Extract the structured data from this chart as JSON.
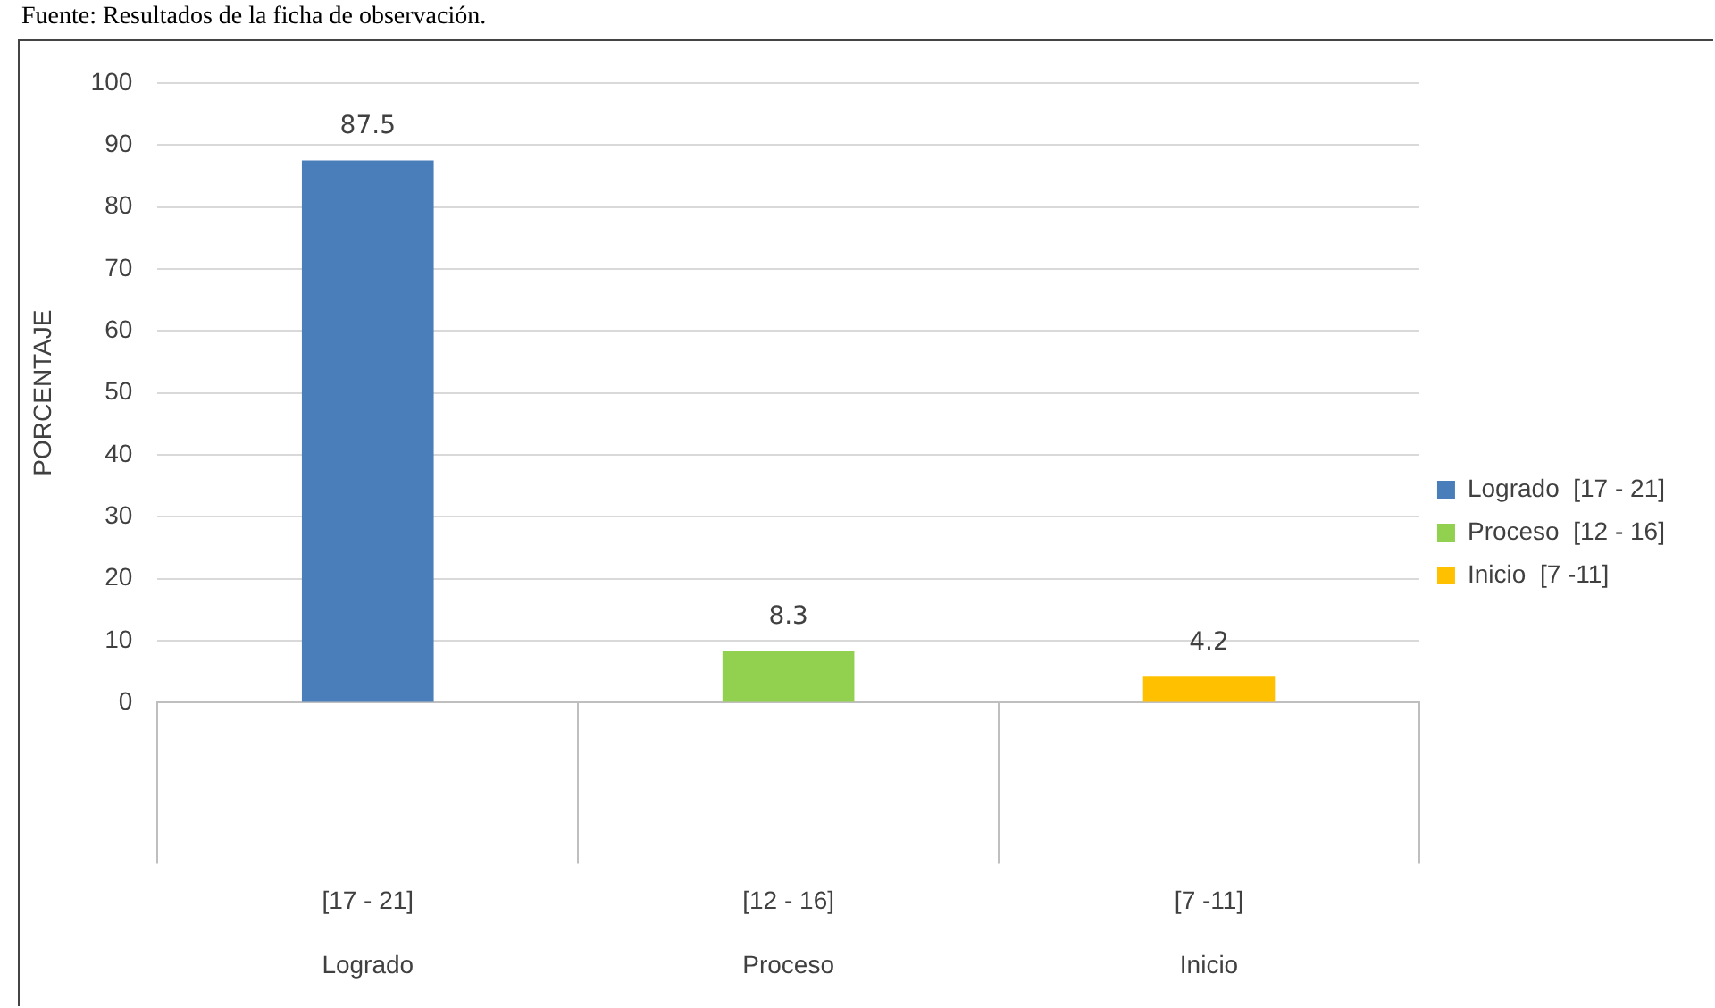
{
  "chart_data": {
    "type": "bar",
    "ylabel": "PORCENTAJE",
    "categories": [
      "[17 - 21]\nLogrado",
      "[12 - 16]\nProceso",
      "[7 -11]\nInicio"
    ],
    "series": [
      {
        "name": "Logrado  [17 - 21]",
        "color": "#4a7ebb",
        "values": [
          87.5,
          null,
          null
        ]
      },
      {
        "name": "Proceso  [12 - 16]",
        "color": "#92d050",
        "values": [
          null,
          8.3,
          null
        ]
      },
      {
        "name": "Inicio  [7 -11]",
        "color": "#ffc000",
        "values": [
          null,
          null,
          4.2
        ]
      }
    ],
    "ylim": [
      0,
      100
    ],
    "yticks": [
      0,
      10,
      20,
      30,
      40,
      50,
      60,
      70,
      80,
      90,
      100
    ],
    "grid": "y",
    "legend": "right",
    "data_labels": true,
    "annotations": [
      "Fuente: Resultados de la ficha de observación."
    ]
  }
}
